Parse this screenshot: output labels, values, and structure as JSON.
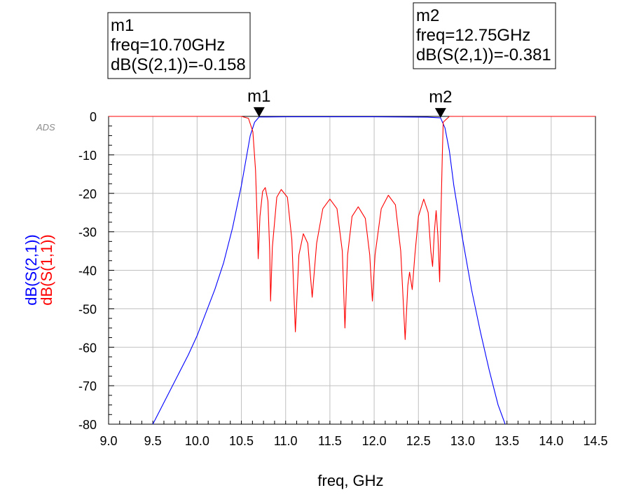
{
  "chart_data": {
    "type": "line",
    "watermark": "ADS",
    "xlabel": "freq, GHz",
    "xlim": [
      9.0,
      14.5
    ],
    "ylim": [
      -80,
      0
    ],
    "grid": true,
    "x_ticks": [
      "9.0",
      "9.5",
      "10.0",
      "10.5",
      "11.0",
      "11.5",
      "12.0",
      "12.5",
      "13.0",
      "13.5",
      "14.0",
      "14.5"
    ],
    "y_ticks": [
      "0",
      "-10",
      "-20",
      "-30",
      "-40",
      "-50",
      "-60",
      "-70",
      "-80"
    ],
    "colors": {
      "s21": "#0000ff",
      "s11": "#ff0000"
    },
    "series": [
      {
        "name": "dB(S(2,1))",
        "color": "#0000ff",
        "points": [
          [
            9.5,
            -80
          ],
          [
            9.7,
            -71
          ],
          [
            9.9,
            -62
          ],
          [
            10.0,
            -57
          ],
          [
            10.1,
            -51
          ],
          [
            10.2,
            -45
          ],
          [
            10.3,
            -38
          ],
          [
            10.4,
            -29
          ],
          [
            10.5,
            -18
          ],
          [
            10.6,
            -5
          ],
          [
            10.65,
            -1.5
          ],
          [
            10.7,
            -0.158
          ],
          [
            11.0,
            -0.1
          ],
          [
            12.0,
            -0.1
          ],
          [
            12.6,
            -0.2
          ],
          [
            12.75,
            -0.381
          ],
          [
            12.8,
            -3
          ],
          [
            12.85,
            -9
          ],
          [
            12.9,
            -18
          ],
          [
            13.0,
            -32
          ],
          [
            13.1,
            -45
          ],
          [
            13.2,
            -56
          ],
          [
            13.3,
            -66
          ],
          [
            13.4,
            -75
          ],
          [
            13.48,
            -80
          ]
        ]
      },
      {
        "name": "dB(S(1,1))",
        "color": "#ff0000",
        "points": [
          [
            9.0,
            0
          ],
          [
            10.5,
            0
          ],
          [
            10.58,
            -0.5
          ],
          [
            10.63,
            -4
          ],
          [
            10.66,
            -14
          ],
          [
            10.68,
            -28
          ],
          [
            10.69,
            -37
          ],
          [
            10.71,
            -26
          ],
          [
            10.74,
            -19.5
          ],
          [
            10.77,
            -18.5
          ],
          [
            10.8,
            -22
          ],
          [
            10.82,
            -35
          ],
          [
            10.83,
            -48
          ],
          [
            10.85,
            -34
          ],
          [
            10.9,
            -21
          ],
          [
            10.95,
            -19
          ],
          [
            11.02,
            -21
          ],
          [
            11.07,
            -32
          ],
          [
            11.11,
            -56
          ],
          [
            11.15,
            -36
          ],
          [
            11.2,
            -30.5
          ],
          [
            11.25,
            -33
          ],
          [
            11.3,
            -47
          ],
          [
            11.35,
            -33
          ],
          [
            11.42,
            -24
          ],
          [
            11.5,
            -21.5
          ],
          [
            11.58,
            -24
          ],
          [
            11.64,
            -35
          ],
          [
            11.67,
            -55
          ],
          [
            11.7,
            -36
          ],
          [
            11.75,
            -26
          ],
          [
            11.82,
            -23.5
          ],
          [
            11.9,
            -26.5
          ],
          [
            11.95,
            -36
          ],
          [
            11.98,
            -48
          ],
          [
            12.01,
            -36
          ],
          [
            12.08,
            -24
          ],
          [
            12.16,
            -20.5
          ],
          [
            12.24,
            -23
          ],
          [
            12.3,
            -35
          ],
          [
            12.35,
            -58
          ],
          [
            12.38,
            -44
          ],
          [
            12.4,
            -40.5
          ],
          [
            12.43,
            -45
          ],
          [
            12.46,
            -36
          ],
          [
            12.5,
            -26
          ],
          [
            12.56,
            -21.5
          ],
          [
            12.61,
            -25
          ],
          [
            12.64,
            -35
          ],
          [
            12.66,
            -39
          ],
          [
            12.68,
            -30
          ],
          [
            12.7,
            -24.5
          ],
          [
            12.72,
            -31
          ],
          [
            12.74,
            -43
          ],
          [
            12.75,
            -30
          ],
          [
            12.77,
            -10
          ],
          [
            12.78,
            -1.5
          ],
          [
            12.85,
            0
          ],
          [
            14.5,
            0
          ]
        ]
      }
    ],
    "markers": [
      {
        "id": "m1",
        "freq": 10.7,
        "value": -0.158,
        "lines": [
          "m1",
          "freq=10.70GHz",
          "dB(S(2,1))=-0.158"
        ]
      },
      {
        "id": "m2",
        "freq": 12.75,
        "value": -0.381,
        "lines": [
          "m2",
          "freq=12.75GHz",
          "dB(S(2,1))=-0.381"
        ]
      }
    ]
  }
}
